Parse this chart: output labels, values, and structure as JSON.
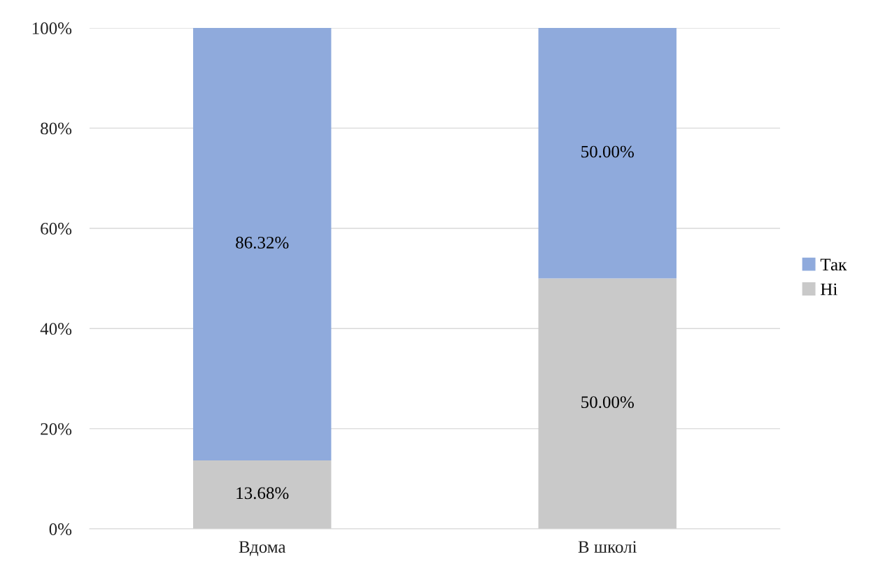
{
  "chart_data": {
    "type": "bar",
    "stacked": true,
    "categories": [
      "Вдома",
      "В школі"
    ],
    "series": [
      {
        "name": "Ні",
        "color": "#c9c9c9",
        "values": [
          13.68,
          50.0
        ],
        "value_labels": [
          "13.68%",
          "50.00%"
        ]
      },
      {
        "name": "Так",
        "color": "#8faadc",
        "values": [
          86.32,
          50.0
        ],
        "value_labels": [
          "86.32%",
          "50.00%"
        ]
      }
    ],
    "ylim": [
      0,
      100
    ],
    "yticks": [
      {
        "value": 0,
        "label": "0%"
      },
      {
        "value": 20,
        "label": "20%"
      },
      {
        "value": 40,
        "label": "40%"
      },
      {
        "value": 60,
        "label": "60%"
      },
      {
        "value": 80,
        "label": "80%"
      },
      {
        "value": 100,
        "label": "100%"
      }
    ],
    "grid": "y",
    "legend": "right"
  }
}
